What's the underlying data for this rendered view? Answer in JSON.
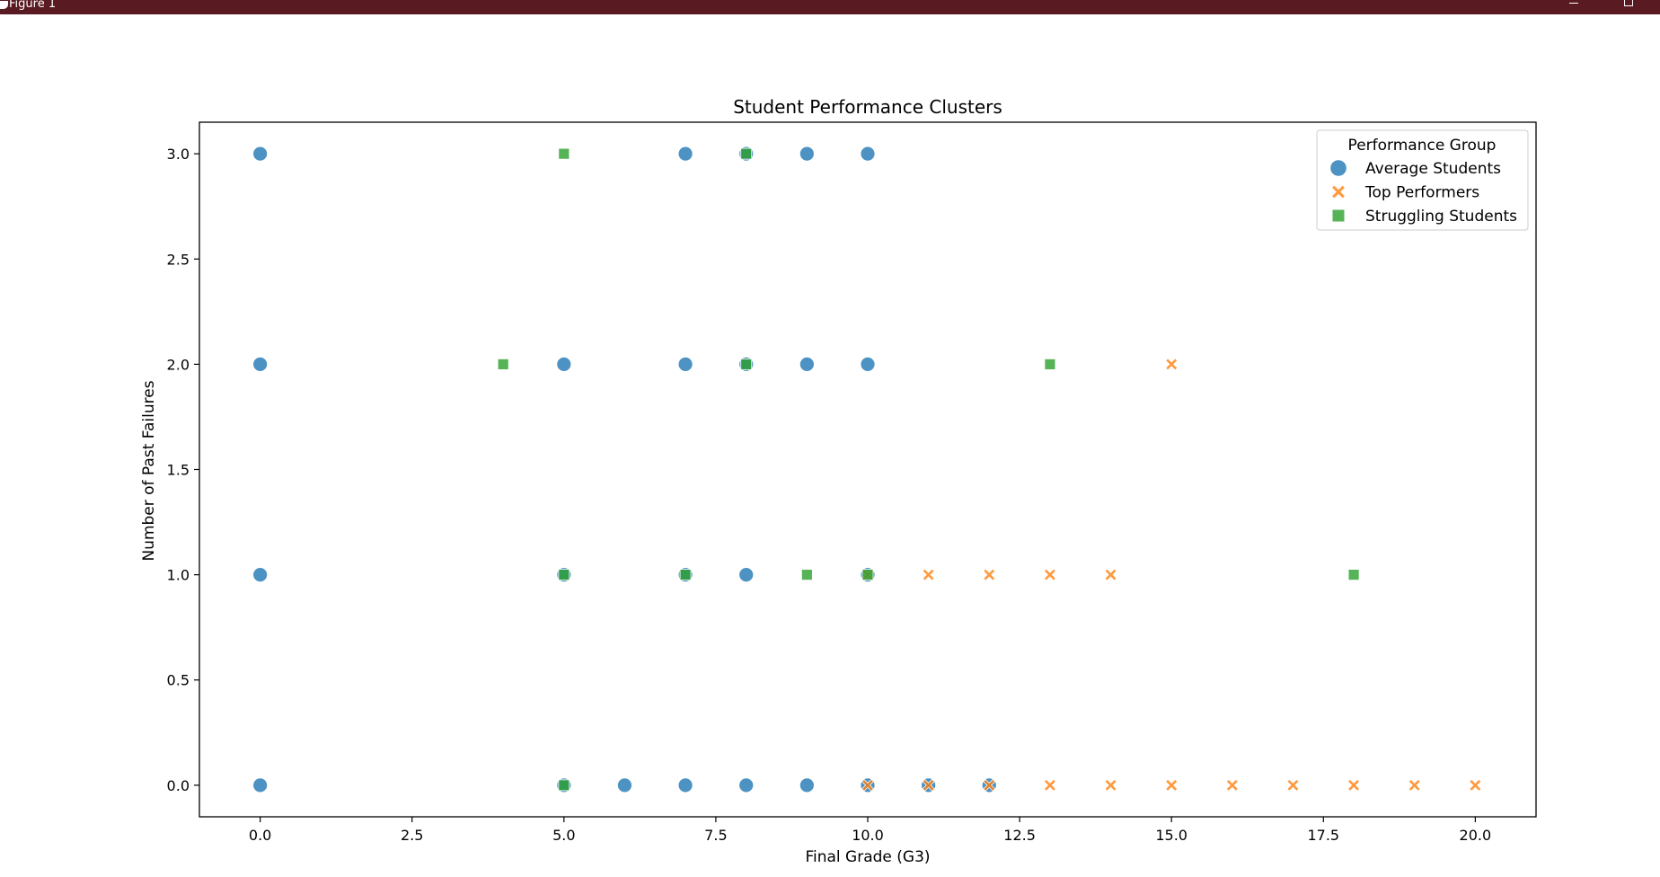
{
  "window": {
    "title": "Figure 1"
  },
  "chart_data": {
    "type": "scatter",
    "title": "Student Performance Clusters",
    "xlabel": "Final Grade (G3)",
    "ylabel": "Number of Past Failures",
    "xlim": [
      -1,
      21
    ],
    "ylim": [
      -0.15,
      3.15
    ],
    "xticks": [
      0.0,
      2.5,
      5.0,
      7.5,
      10.0,
      12.5,
      15.0,
      17.5,
      20.0
    ],
    "xtick_labels": [
      "0.0",
      "2.5",
      "5.0",
      "7.5",
      "10.0",
      "12.5",
      "15.0",
      "17.5",
      "20.0"
    ],
    "yticks": [
      0.0,
      0.5,
      1.0,
      1.5,
      2.0,
      2.5,
      3.0
    ],
    "ytick_labels": [
      "0.0",
      "0.5",
      "1.0",
      "1.5",
      "2.0",
      "2.5",
      "3.0"
    ],
    "grid": false,
    "legend": {
      "title": "Performance Group",
      "position": "top-right"
    },
    "series": [
      {
        "name": "Average Students",
        "marker": "circle",
        "color": "#1f77b4",
        "points": [
          [
            0,
            3
          ],
          [
            7,
            3
          ],
          [
            8,
            3
          ],
          [
            9,
            3
          ],
          [
            10,
            3
          ],
          [
            0,
            2
          ],
          [
            5,
            2
          ],
          [
            7,
            2
          ],
          [
            8,
            2
          ],
          [
            9,
            2
          ],
          [
            10,
            2
          ],
          [
            0,
            1
          ],
          [
            5,
            1
          ],
          [
            7,
            1
          ],
          [
            8,
            1
          ],
          [
            10,
            1
          ],
          [
            0,
            0
          ],
          [
            5,
            0
          ],
          [
            6,
            0
          ],
          [
            7,
            0
          ],
          [
            8,
            0
          ],
          [
            9,
            0
          ],
          [
            10,
            0
          ],
          [
            11,
            0
          ],
          [
            12,
            0
          ]
        ]
      },
      {
        "name": "Top Performers",
        "marker": "x",
        "color": "#ff7f0e",
        "points": [
          [
            15,
            2
          ],
          [
            10,
            1
          ],
          [
            11,
            1
          ],
          [
            12,
            1
          ],
          [
            13,
            1
          ],
          [
            14,
            1
          ],
          [
            10,
            0
          ],
          [
            11,
            0
          ],
          [
            12,
            0
          ],
          [
            13,
            0
          ],
          [
            14,
            0
          ],
          [
            15,
            0
          ],
          [
            16,
            0
          ],
          [
            17,
            0
          ],
          [
            18,
            0
          ],
          [
            19,
            0
          ],
          [
            20,
            0
          ]
        ]
      },
      {
        "name": "Struggling Students",
        "marker": "square",
        "color": "#2ca02c",
        "points": [
          [
            5,
            3
          ],
          [
            8,
            3
          ],
          [
            4,
            2
          ],
          [
            8,
            2
          ],
          [
            13,
            2
          ],
          [
            5,
            1
          ],
          [
            7,
            1
          ],
          [
            9,
            1
          ],
          [
            10,
            1
          ],
          [
            18,
            1
          ],
          [
            5,
            0
          ]
        ]
      }
    ]
  }
}
